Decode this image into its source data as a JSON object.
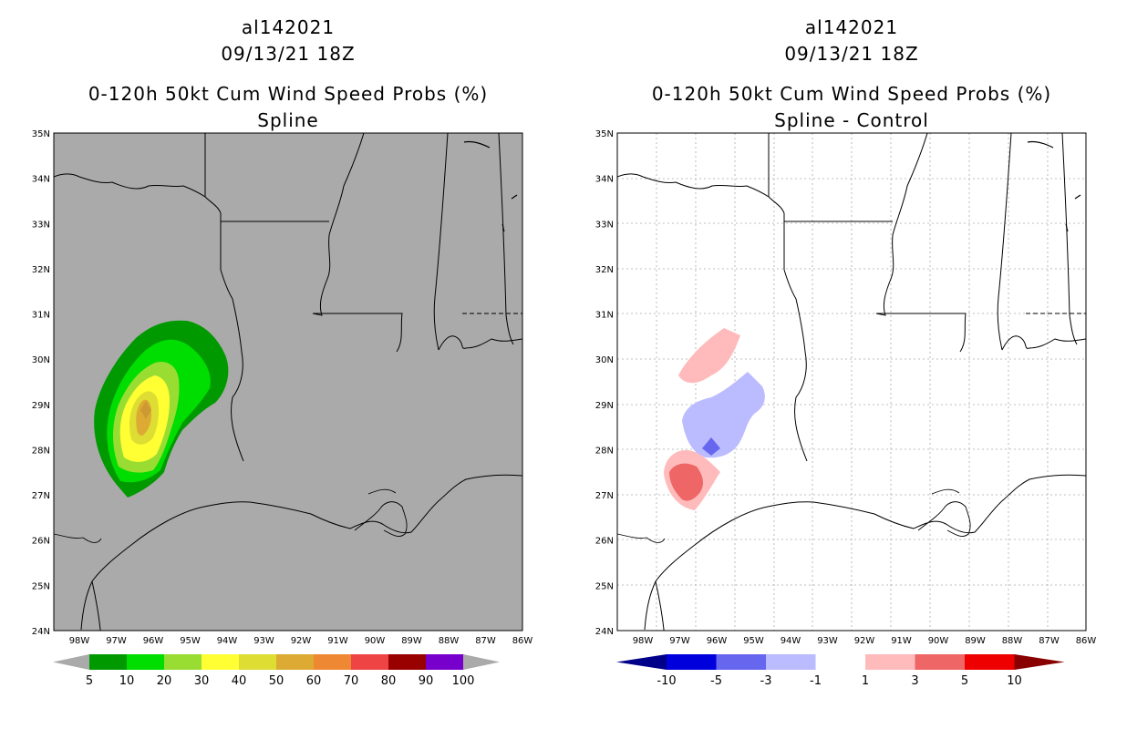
{
  "left_panel": {
    "storm_id": "al142021",
    "datetime": "09/13/21 18Z",
    "product": "0-120h 50kt Cum Wind Speed Probs (%)",
    "subtitle": "Spline",
    "colorbar_labels": [
      "5",
      "10",
      "20",
      "30",
      "40",
      "50",
      "60",
      "70",
      "80",
      "90",
      "100"
    ],
    "colorbar_colors": [
      "#009900",
      "#00dd00",
      "#99dd33",
      "#ffff33",
      "#dddd33",
      "#ddaa33",
      "#ee8833",
      "#ee4444",
      "#990000",
      "#7700cc"
    ],
    "background_color": "#aaaaaa"
  },
  "right_panel": {
    "storm_id": "al142021",
    "datetime": "09/13/21 18Z",
    "product": "0-120h 50kt Cum Wind Speed Probs (%)",
    "subtitle": "Spline - Control",
    "colorbar_labels": [
      "-10",
      "-5",
      "-3",
      "-1",
      "1",
      "3",
      "5",
      "10"
    ],
    "colorbar_colors": [
      "#0000dd",
      "#6666ee",
      "#bbbbff",
      "#ffffff",
      "#ffbbbb",
      "#ee6666",
      "#ee0000"
    ],
    "end_colors": {
      "low": "#000088",
      "high": "#880000"
    }
  },
  "axes": {
    "lat_labels": [
      "35N",
      "34N",
      "33N",
      "32N",
      "31N",
      "30N",
      "29N",
      "28N",
      "27N",
      "26N",
      "25N",
      "24N"
    ],
    "lon_labels": [
      "98W",
      "97W",
      "96W",
      "95W",
      "94W",
      "93W",
      "92W",
      "91W",
      "90W",
      "89W",
      "88W",
      "87W",
      "86W"
    ]
  }
}
